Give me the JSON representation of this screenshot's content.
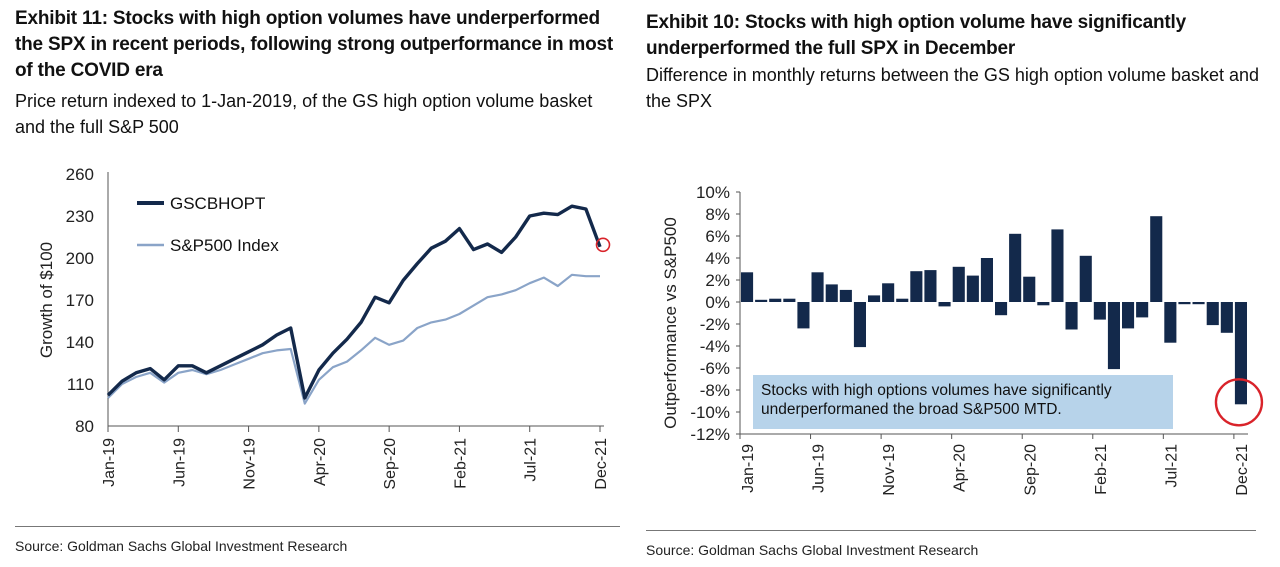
{
  "left": {
    "title": "Exhibit 11: Stocks with high option volumes have underperformed the SPX in recent periods, following strong outperformance in most of the COVID era",
    "subtitle": "Price return indexed to 1-Jan-2019, of the GS high option volume basket and the full S&P 500",
    "source": "Source: Goldman Sachs Global Investment Research"
  },
  "right": {
    "title": "Exhibit 10: Stocks with high option volume have significantly underperformed the full SPX in December",
    "subtitle": "Difference in monthly returns between the GS high option volume basket and the SPX",
    "source": "Source: Goldman Sachs Global Investment Research",
    "callout": "Stocks with high options volumes have significantly underperformaned the broad S&P500 MTD."
  },
  "colors": {
    "gscbhopt": "#13294b",
    "spx": "#8aa4c8",
    "bars": "#13294b",
    "highlight": "#d9232a",
    "callout_bg": "#b7d3ea"
  },
  "chart_data": [
    {
      "type": "line",
      "ylabel": "Growth of $100",
      "xlabel": "",
      "ylim": [
        80,
        260
      ],
      "yticks": [
        80,
        110,
        140,
        170,
        200,
        230,
        260
      ],
      "xticks": [
        "Jan-19",
        "Jun-19",
        "Nov-19",
        "Apr-20",
        "Sep-20",
        "Feb-21",
        "Jul-21",
        "Dec-21"
      ],
      "grid": false,
      "legend": "top-left",
      "series": [
        {
          "name": "GSCBHOPT",
          "x": [
            "Jan-19",
            "Feb-19",
            "Mar-19",
            "Apr-19",
            "May-19",
            "Jun-19",
            "Jul-19",
            "Aug-19",
            "Sep-19",
            "Oct-19",
            "Nov-19",
            "Dec-19",
            "Jan-20",
            "Feb-20",
            "Mar-20",
            "Apr-20",
            "May-20",
            "Jun-20",
            "Jul-20",
            "Aug-20",
            "Sep-20",
            "Oct-20",
            "Nov-20",
            "Dec-20",
            "Jan-21",
            "Feb-21",
            "Mar-21",
            "Apr-21",
            "May-21",
            "Jun-21",
            "Jul-21",
            "Aug-21",
            "Sep-21",
            "Oct-21",
            "Nov-21",
            "Dec-21"
          ],
          "values": [
            102,
            112,
            118,
            121,
            113,
            123,
            123,
            118,
            123,
            128,
            133,
            138,
            145,
            150,
            100,
            120,
            132,
            142,
            154,
            172,
            168,
            184,
            196,
            207,
            212,
            221,
            206,
            210,
            204,
            215,
            230,
            232,
            231,
            237,
            235,
            208
          ]
        },
        {
          "name": "S&P500 Index",
          "x": [
            "Jan-19",
            "Feb-19",
            "Mar-19",
            "Apr-19",
            "May-19",
            "Jun-19",
            "Jul-19",
            "Aug-19",
            "Sep-19",
            "Oct-19",
            "Nov-19",
            "Dec-19",
            "Jan-20",
            "Feb-20",
            "Mar-20",
            "Apr-20",
            "May-20",
            "Jun-20",
            "Jul-20",
            "Aug-20",
            "Sep-20",
            "Oct-20",
            "Nov-20",
            "Dec-20",
            "Jan-21",
            "Feb-21",
            "Mar-21",
            "Apr-21",
            "May-21",
            "Jun-21",
            "Jul-21",
            "Aug-21",
            "Sep-21",
            "Oct-21",
            "Nov-21",
            "Dec-21"
          ],
          "values": [
            100,
            110,
            115,
            118,
            111,
            118,
            120,
            117,
            120,
            124,
            128,
            132,
            134,
            135,
            96,
            113,
            122,
            126,
            134,
            143,
            138,
            141,
            150,
            154,
            156,
            160,
            166,
            172,
            174,
            177,
            182,
            186,
            180,
            188,
            187,
            187
          ]
        }
      ]
    },
    {
      "type": "bar",
      "ylabel": "Outperformance vs S&P500",
      "xlabel": "",
      "ylim": [
        -12,
        10
      ],
      "yticks": [
        "10%",
        "8%",
        "6%",
        "4%",
        "2%",
        "0%",
        "-2%",
        "-4%",
        "-6%",
        "-8%",
        "-10%",
        "-12%"
      ],
      "xticks": [
        "Jan-19",
        "Jun-19",
        "Nov-19",
        "Apr-20",
        "Sep-20",
        "Feb-21",
        "Jul-21",
        "Dec-21"
      ],
      "categories": [
        "Jan-19",
        "Feb-19",
        "Mar-19",
        "Apr-19",
        "May-19",
        "Jun-19",
        "Jul-19",
        "Aug-19",
        "Sep-19",
        "Oct-19",
        "Nov-19",
        "Dec-19",
        "Jan-20",
        "Feb-20",
        "Mar-20",
        "Apr-20",
        "May-20",
        "Jun-20",
        "Jul-20",
        "Aug-20",
        "Sep-20",
        "Oct-20",
        "Nov-20",
        "Dec-20",
        "Jan-21",
        "Feb-21",
        "Mar-21",
        "Apr-21",
        "May-21",
        "Jun-21",
        "Jul-21",
        "Aug-21",
        "Sep-21",
        "Oct-21",
        "Nov-21",
        "Dec-21"
      ],
      "values": [
        2.7,
        0.2,
        0.3,
        0.3,
        -2.4,
        2.7,
        1.6,
        1.1,
        -4.1,
        0.6,
        1.7,
        0.3,
        2.8,
        2.9,
        -0.4,
        3.2,
        2.4,
        4.0,
        -1.2,
        6.2,
        2.3,
        -0.3,
        6.6,
        -2.5,
        4.2,
        -1.6,
        -6.1,
        -2.4,
        -1.4,
        7.8,
        -3.7,
        -0.2,
        -0.2,
        -2.1,
        -2.8,
        -9.3
      ],
      "highlight": "Dec-21",
      "grid": false
    }
  ]
}
